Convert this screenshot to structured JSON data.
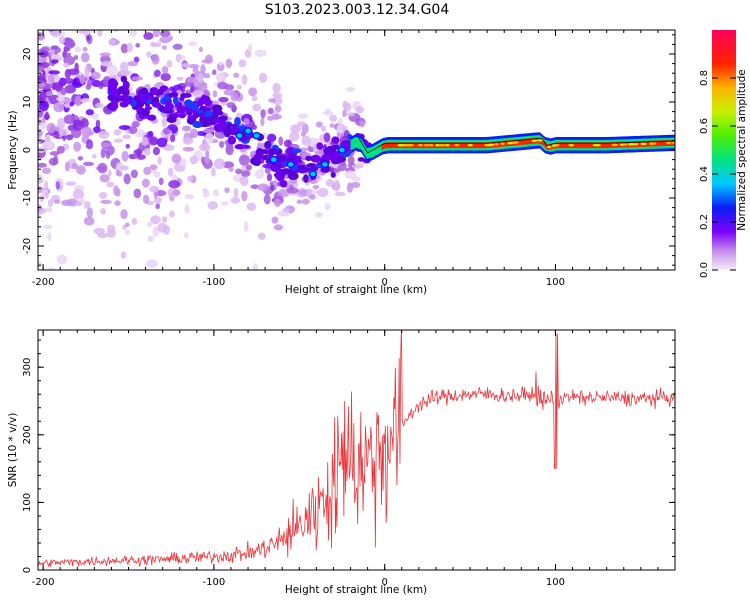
{
  "title": "S103.2023.003.12.34.G04",
  "chart_data": [
    {
      "type": "heatmap",
      "xlabel": "Height of straight line (km)",
      "ylabel": "Frequency (Hz)",
      "xlim": [
        -203,
        170
      ],
      "ylim": [
        -25,
        25
      ],
      "xticks": [
        -200,
        -100,
        0,
        100
      ],
      "yticks": [
        -20,
        -10,
        0,
        10,
        20
      ],
      "colorbar": {
        "label": "Normalized spectral amplitude",
        "range": [
          0,
          1
        ],
        "ticks": [
          "0.0",
          "0.2",
          "0.4",
          "0.6",
          "0.8"
        ]
      },
      "ridge": {
        "x": [
          -200,
          -180,
          -160,
          -140,
          -120,
          -100,
          -90,
          -80,
          -70,
          -60,
          -50,
          -45,
          -40,
          -30,
          -20,
          -15,
          -10,
          0,
          30,
          60,
          90,
          92,
          95,
          100,
          130,
          170
        ],
        "y": [
          15,
          14,
          12,
          10,
          9,
          7,
          4,
          2,
          -1,
          -3,
          -3,
          -4,
          -2,
          -1,
          1,
          2,
          -1,
          1,
          1,
          1,
          2,
          2,
          0.5,
          1,
          1,
          1.5
        ]
      }
    },
    {
      "type": "line",
      "xlabel": "Height of straight line (km)",
      "ylabel": "SNR (10 * v/v)",
      "xlim": [
        -203,
        170
      ],
      "ylim": [
        0,
        355
      ],
      "xticks": [
        -200,
        -100,
        0,
        100
      ],
      "yticks": [
        0,
        100,
        200,
        300
      ],
      "series": [
        {
          "color": "#e8383d",
          "x": [
            -203,
            -180,
            -160,
            -140,
            -120,
            -100,
            -80,
            -70,
            -60,
            -50,
            -40,
            -35,
            -30,
            -25,
            -20,
            -15,
            -10,
            -5,
            0,
            10,
            20,
            30,
            40,
            50,
            60,
            70,
            80,
            90,
            95,
            98,
            100,
            102,
            105,
            110,
            130,
            150,
            170
          ],
          "values": [
            10,
            12,
            14,
            15,
            17,
            20,
            25,
            32,
            45,
            65,
            90,
            110,
            130,
            145,
            155,
            160,
            160,
            170,
            185,
            215,
            245,
            255,
            258,
            260,
            260,
            258,
            258,
            260,
            255,
            250,
            250,
            250,
            255,
            255,
            255,
            253,
            255
          ]
        }
      ]
    }
  ]
}
